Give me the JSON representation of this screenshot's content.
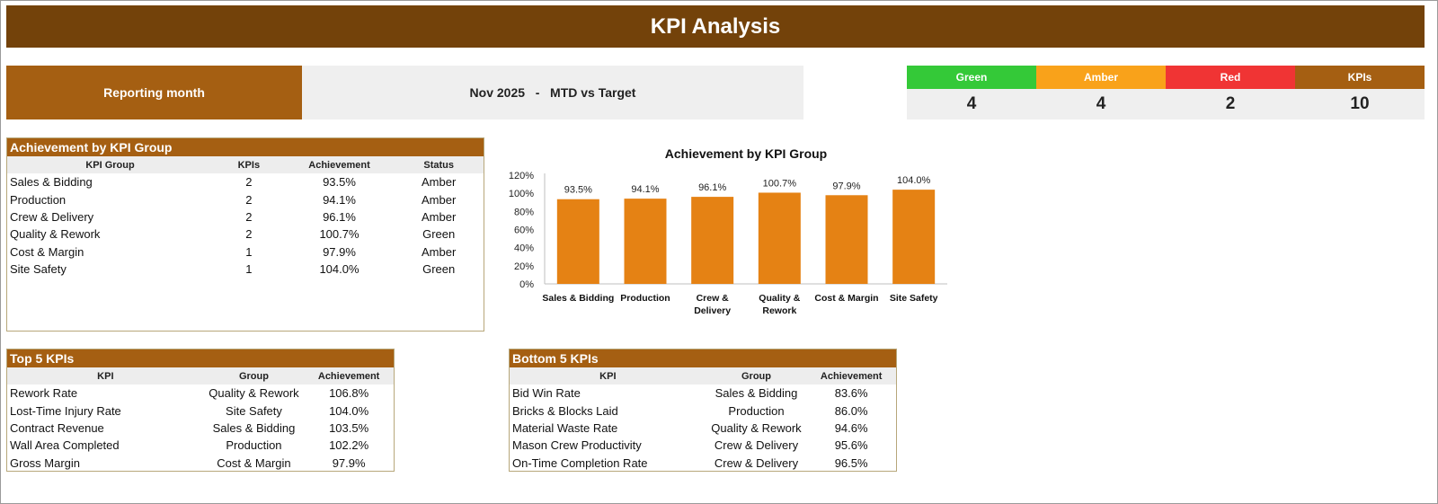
{
  "header": {
    "title": "KPI Analysis"
  },
  "reporting": {
    "label": "Reporting month",
    "month": "Nov 2025",
    "separator": "-",
    "mode": "MTD vs Target"
  },
  "status_summary": [
    {
      "name": "Green",
      "value": "4",
      "color": "#34c938"
    },
    {
      "name": "Amber",
      "value": "4",
      "color": "#f9a21a"
    },
    {
      "name": "Red",
      "value": "2",
      "color": "#f03434"
    },
    {
      "name": "KPIs",
      "value": "10",
      "color": "#a55f12"
    }
  ],
  "group_table": {
    "title": "Achievement by KPI Group",
    "columns": [
      "KPI Group",
      "KPIs",
      "Achievement",
      "Status"
    ],
    "rows": [
      [
        "Sales & Bidding",
        "2",
        "93.5%",
        "Amber"
      ],
      [
        "Production",
        "2",
        "94.1%",
        "Amber"
      ],
      [
        "Crew & Delivery",
        "2",
        "96.1%",
        "Amber"
      ],
      [
        "Quality & Rework",
        "2",
        "100.7%",
        "Green"
      ],
      [
        "Cost & Margin",
        "1",
        "97.9%",
        "Amber"
      ],
      [
        "Site Safety",
        "1",
        "104.0%",
        "Green"
      ]
    ]
  },
  "top_table": {
    "title": "Top 5 KPIs",
    "columns": [
      "KPI",
      "Group",
      "Achievement"
    ],
    "rows": [
      [
        "Rework Rate",
        "Quality & Rework",
        "106.8%"
      ],
      [
        "Lost-Time Injury Rate",
        "Site Safety",
        "104.0%"
      ],
      [
        "Contract Revenue",
        "Sales & Bidding",
        "103.5%"
      ],
      [
        "Wall Area Completed",
        "Production",
        "102.2%"
      ],
      [
        "Gross Margin",
        "Cost & Margin",
        "97.9%"
      ]
    ]
  },
  "bottom_table": {
    "title": "Bottom 5 KPIs",
    "columns": [
      "KPI",
      "Group",
      "Achievement"
    ],
    "rows": [
      [
        "Bid Win Rate",
        "Sales & Bidding",
        "83.6%"
      ],
      [
        "Bricks & Blocks Laid",
        "Production",
        "86.0%"
      ],
      [
        "Material Waste Rate",
        "Quality & Rework",
        "94.6%"
      ],
      [
        "Mason Crew Productivity",
        "Crew & Delivery",
        "95.6%"
      ],
      [
        "On-Time Completion Rate",
        "Crew & Delivery",
        "96.5%"
      ]
    ]
  },
  "chart_data": {
    "type": "bar",
    "title": "Achievement by KPI Group",
    "categories": [
      "Sales & Bidding",
      "Production",
      "Crew & Delivery",
      "Quality & Rework",
      "Cost & Margin",
      "Site Safety"
    ],
    "values": [
      93.5,
      94.1,
      96.1,
      100.7,
      97.9,
      104.0
    ],
    "value_labels": [
      "93.5%",
      "94.1%",
      "96.1%",
      "100.7%",
      "97.9%",
      "104.0%"
    ],
    "ylim": [
      0,
      120
    ],
    "yticks": [
      "0%",
      "20%",
      "40%",
      "60%",
      "80%",
      "100%",
      "120%"
    ],
    "grid": false,
    "bar_color": "#e58214"
  }
}
